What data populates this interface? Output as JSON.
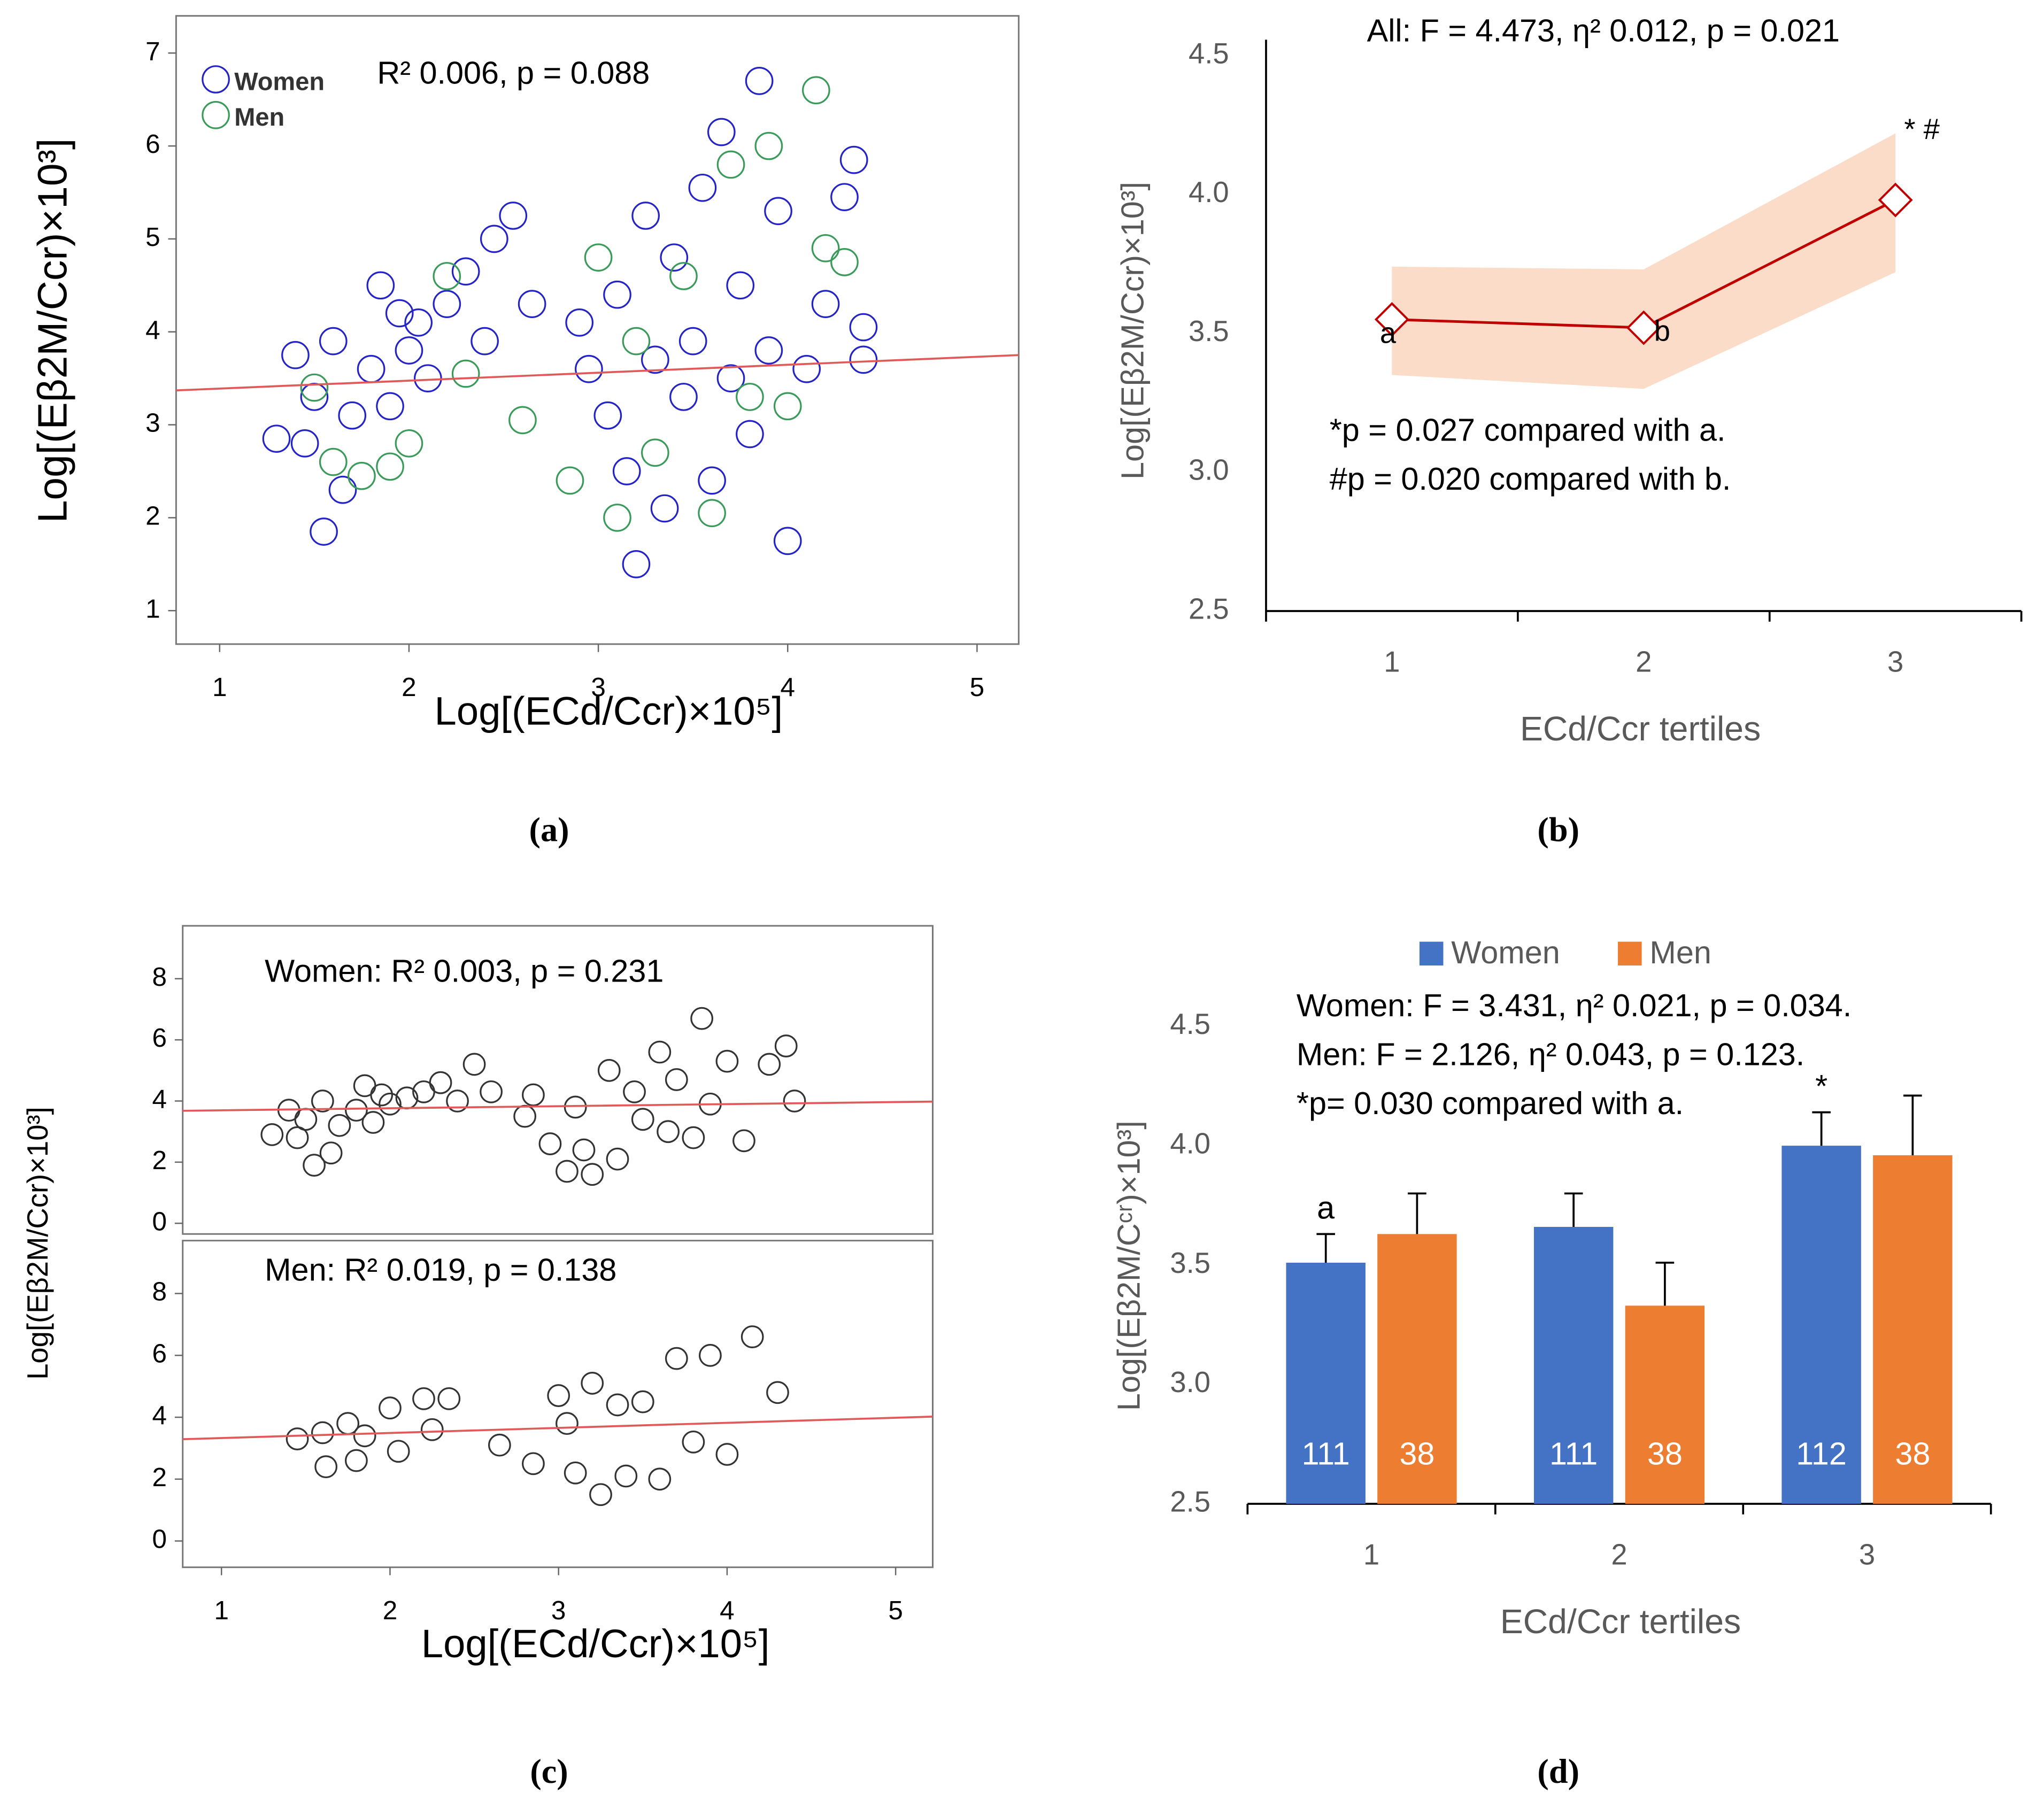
{
  "chart_data": [
    {
      "type": "scatter",
      "caption": "(a)",
      "xlabel": "Log[(ECd/Ccr)×10⁵]",
      "ylabel": "Log[(Eβ2M/Ccr)×10³]",
      "annotation": "R² 0.006, p = 0.088",
      "xlim": [
        0.77,
        5.22
      ],
      "ylim": [
        0.64,
        7.4
      ],
      "xticks": [
        1,
        2,
        3,
        4,
        5
      ],
      "yticks": [
        1,
        2,
        3,
        4,
        5,
        6,
        7
      ],
      "legend": "upper left",
      "series": [
        {
          "name": "Women",
          "color": "#2323c8",
          "x": [
            1.3,
            1.4,
            1.45,
            1.5,
            1.55,
            1.6,
            1.65,
            1.7,
            1.8,
            1.85,
            1.9,
            1.95,
            2.0,
            2.05,
            2.1,
            2.2,
            2.3,
            2.4,
            2.45,
            2.55,
            2.65,
            2.9,
            2.95,
            3.05,
            3.1,
            3.15,
            3.2,
            3.25,
            3.3,
            3.35,
            3.4,
            3.45,
            3.5,
            3.55,
            3.6,
            3.65,
            3.7,
            3.75,
            3.8,
            3.85,
            3.9,
            3.95,
            4.0,
            4.1,
            4.2,
            4.3,
            4.35,
            4.4,
            4.4
          ],
          "y": [
            2.85,
            3.75,
            2.8,
            3.3,
            1.85,
            3.9,
            2.3,
            3.1,
            3.6,
            4.5,
            3.2,
            4.2,
            3.8,
            4.1,
            3.5,
            4.3,
            4.65,
            3.9,
            5.0,
            5.25,
            4.3,
            4.1,
            3.6,
            3.1,
            4.4,
            2.5,
            1.5,
            5.25,
            3.7,
            2.1,
            4.8,
            3.3,
            3.9,
            5.55,
            2.4,
            6.15,
            3.5,
            4.5,
            2.9,
            6.7,
            3.8,
            5.3,
            1.75,
            3.6,
            4.3,
            5.45,
            5.85,
            4.05,
            3.7
          ]
        },
        {
          "name": "Men",
          "color": "#3a9a5a",
          "x": [
            1.5,
            1.6,
            1.75,
            1.9,
            2.0,
            2.2,
            2.3,
            2.6,
            2.85,
            3.0,
            3.1,
            3.2,
            3.3,
            3.45,
            3.6,
            3.7,
            3.8,
            3.9,
            4.0,
            4.15,
            4.2,
            4.3
          ],
          "y": [
            3.4,
            2.6,
            2.45,
            2.55,
            2.8,
            4.6,
            3.55,
            3.05,
            2.4,
            4.8,
            2.0,
            3.9,
            2.7,
            4.6,
            2.05,
            5.8,
            3.3,
            6.0,
            3.2,
            6.6,
            4.9,
            4.75
          ]
        }
      ],
      "fit": {
        "color": "#e05a5a",
        "x": [
          0.77,
          5.22
        ],
        "y": [
          3.37,
          3.75
        ]
      }
    },
    {
      "type": "line",
      "caption": "(b)",
      "title": "All: F = 4.473, η² 0.012, p = 0.021",
      "xlabel": "ECd/Ccr tertiles",
      "ylabel": "Log[(Eβ2M/Ccr)×10³]",
      "categories": [
        "1",
        "2",
        "3"
      ],
      "ylim": [
        2.5,
        4.5
      ],
      "yticks": [
        2.5,
        {
          "value": 3,
          "label": "3.0"
        },
        3.5,
        {
          "value": 4,
          "label": "4.0"
        },
        4.5
      ],
      "series": [
        {
          "color": "#c00000",
          "band_color": "#fbdcc8",
          "values": [
            3.55,
            3.52,
            3.98
          ],
          "lower": [
            3.35,
            3.3,
            3.72
          ],
          "upper": [
            3.74,
            3.73,
            4.22
          ],
          "point_labels": [
            "a",
            "b",
            "* #"
          ]
        }
      ],
      "annotations": [
        "*p = 0.027 compared with a.",
        "#p = 0.020 compared with b."
      ]
    },
    {
      "type": "scatter",
      "annotation": "Women: R² 0.003, p = 0.231",
      "ylabel": "Log[(Eβ2M/Ccr)×10³]",
      "xlim": [
        0.77,
        5.22
      ],
      "ylim": [
        -0.35,
        9.73
      ],
      "yticks": [
        0,
        2,
        4,
        6,
        8
      ],
      "series": [
        {
          "color": "#333333",
          "x": [
            1.3,
            1.4,
            1.45,
            1.5,
            1.55,
            1.6,
            1.65,
            1.7,
            1.8,
            1.85,
            1.9,
            1.95,
            2.0,
            2.1,
            2.2,
            2.3,
            2.4,
            2.5,
            2.6,
            2.8,
            2.85,
            2.95,
            3.05,
            3.1,
            3.15,
            3.2,
            3.3,
            3.35,
            3.45,
            3.5,
            3.6,
            3.65,
            3.7,
            3.8,
            3.85,
            3.9,
            4.0,
            4.1,
            4.25,
            4.35,
            4.4
          ],
          "y": [
            2.9,
            3.7,
            2.8,
            3.4,
            1.9,
            4.0,
            2.3,
            3.2,
            3.7,
            4.5,
            3.3,
            4.2,
            3.9,
            4.1,
            4.3,
            4.6,
            4.0,
            5.2,
            4.3,
            3.5,
            4.2,
            2.6,
            1.7,
            3.8,
            2.4,
            1.6,
            5.0,
            2.1,
            4.3,
            3.4,
            5.6,
            3.0,
            4.7,
            2.8,
            6.7,
            3.9,
            5.3,
            2.7,
            5.2,
            5.8,
            4.0
          ]
        }
      ],
      "fit": {
        "color": "#e05a5a",
        "x": [
          0.77,
          5.22
        ],
        "y": [
          3.68,
          3.98
        ]
      }
    },
    {
      "type": "scatter",
      "caption": "(c)",
      "annotation": "Men: R² 0.019, p = 0.138",
      "xlabel": "Log[(ECd/Ccr)×10⁵]",
      "xlim": [
        0.77,
        5.22
      ],
      "ylim": [
        -0.85,
        9.71
      ],
      "xticks": [
        1,
        2,
        3,
        4,
        5
      ],
      "yticks": [
        0,
        2,
        4,
        6,
        8
      ],
      "series": [
        {
          "color": "#333333",
          "x": [
            1.45,
            1.6,
            1.62,
            1.75,
            1.8,
            1.85,
            2.0,
            2.05,
            2.2,
            2.25,
            2.35,
            2.65,
            2.85,
            3.0,
            3.05,
            3.1,
            3.2,
            3.25,
            3.35,
            3.4,
            3.5,
            3.6,
            3.7,
            3.8,
            3.9,
            4.0,
            4.15,
            4.3
          ],
          "y": [
            3.3,
            3.5,
            2.4,
            3.8,
            2.6,
            3.4,
            4.3,
            2.9,
            4.6,
            3.6,
            4.6,
            3.1,
            2.5,
            4.7,
            3.8,
            2.2,
            5.1,
            1.5,
            4.4,
            2.1,
            4.5,
            2.0,
            5.9,
            3.2,
            6.0,
            2.8,
            6.6,
            4.8
          ]
        }
      ],
      "fit": {
        "color": "#e05a5a",
        "x": [
          0.77,
          5.22
        ],
        "y": [
          3.29,
          4.02
        ]
      }
    },
    {
      "type": "bar",
      "caption": "(d)",
      "xlabel": "ECd/Ccr tertiles",
      "ylabel": "Log[(Eβ2M/Cᶜʳ)×10³]",
      "legend": "top",
      "categories": [
        "1",
        "2",
        "3"
      ],
      "ylim": [
        2.5,
        4.5
      ],
      "yticks": [
        2.5,
        {
          "value": 3,
          "label": "3.0"
        },
        3.5,
        {
          "value": 4,
          "label": "4.0"
        },
        4.5
      ],
      "annotations": [
        "Women: F = 3.431, η² 0.021, p = 0.034.",
        "Men: F = 2.126, η² 0.043, p = 0.123.",
        "*p= 0.030 compared with a."
      ],
      "series": [
        {
          "name": "Women",
          "color": "#4472c4",
          "values": [
            3.51,
            3.66,
            4.0
          ],
          "errors": [
            0.12,
            0.14,
            0.14
          ],
          "counts": [
            111,
            111,
            112
          ],
          "point_labels": [
            "a",
            null,
            "*"
          ]
        },
        {
          "name": "Men",
          "color": "#ed7d31",
          "values": [
            3.63,
            3.33,
            3.96
          ],
          "errors": [
            0.17,
            0.18,
            0.25
          ],
          "counts": [
            38,
            38,
            38
          ]
        }
      ]
    }
  ]
}
